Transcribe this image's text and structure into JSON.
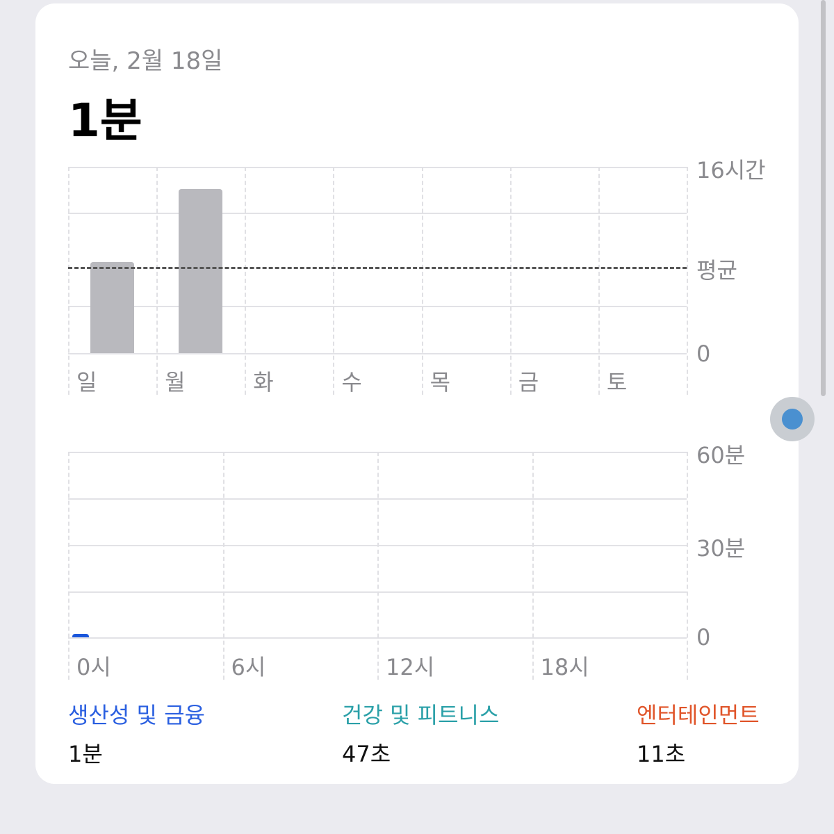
{
  "header": {
    "date": "오늘, 2월 18일",
    "total": "1분"
  },
  "weekly_chart": {
    "type": "bar",
    "categories": [
      "일",
      "월",
      "화",
      "수",
      "목",
      "금",
      "토"
    ],
    "values_hours": [
      7.8,
      14.1,
      0,
      0,
      0,
      0,
      0
    ],
    "average_hours": 7.4,
    "ylim": [
      0,
      16
    ],
    "y_tick_labels": {
      "top": "16시간",
      "avg": "평균",
      "zero": "0"
    },
    "bar_color": "#b9b9be"
  },
  "hourly_chart": {
    "type": "bar",
    "x_tick_labels": [
      "0시",
      "6시",
      "12시",
      "18시"
    ],
    "ylim": [
      0,
      60
    ],
    "y_tick_labels": [
      "60분",
      "30분",
      "0"
    ],
    "values_minutes": [
      {
        "hour": 0,
        "value": 1
      }
    ],
    "bar_color": "#1a56db"
  },
  "categories": [
    {
      "label": "생산성 및 금융",
      "value": "1분",
      "color": "#2a5fe0"
    },
    {
      "label": "건강 및 피트니스",
      "value": "47초",
      "color": "#2aa0a8"
    },
    {
      "label": "엔터테인먼트",
      "value": "11초",
      "color": "#e0552a"
    }
  ]
}
